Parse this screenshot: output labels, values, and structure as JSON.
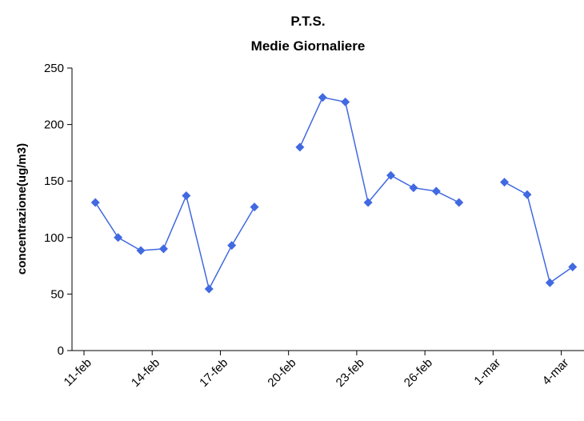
{
  "chart_data": {
    "type": "line",
    "title": "P.T.S.",
    "subtitle": "Medie Giornaliere",
    "y_label": "concentrazione(ug/m3)",
    "categories": [
      "11-feb",
      null,
      null,
      "14-feb",
      null,
      null,
      "17-feb",
      null,
      null,
      "20-feb",
      null,
      null,
      "23-feb",
      null,
      null,
      "26-feb",
      null,
      null,
      "1-mar",
      null,
      null,
      "4-mar"
    ],
    "values": [
      131,
      100,
      88.5,
      90,
      137,
      54.5,
      93,
      127,
      null,
      180,
      224,
      220,
      131,
      155,
      144,
      141,
      131,
      null,
      149,
      138,
      60,
      74
    ],
    "color": "#4169e1",
    "ylim": [
      0,
      250
    ],
    "yticks": [
      0,
      50,
      100,
      150,
      200,
      250
    ]
  }
}
